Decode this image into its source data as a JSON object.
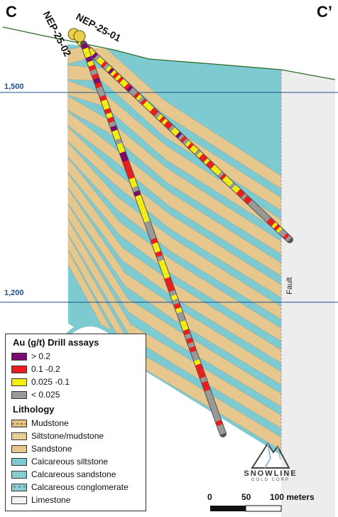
{
  "section": {
    "left_label": "C",
    "right_label": "C’",
    "elevations": [
      {
        "label": "1,500",
        "value": 1500
      },
      {
        "label": "1,200",
        "value": 1200
      }
    ],
    "fault_label": "Fault"
  },
  "drillholes": [
    {
      "id": "NEP-25-01",
      "label": "NEP-25-01"
    },
    {
      "id": "NEP-25-02",
      "label": "NEP-25-02"
    }
  ],
  "legend": {
    "assay_title": "Au (g/t) Drill assays",
    "assays": [
      {
        "label": "> 0.2",
        "color": "#7a0a6e"
      },
      {
        "label": "0.1 -0.2",
        "color": "#ee1c1c"
      },
      {
        "label": "0.025 -0.1",
        "color": "#f4ee12"
      },
      {
        "label": "< 0.025",
        "color": "#9a9a9a"
      }
    ],
    "lithology_title": "Lithology",
    "lithology": [
      {
        "label": "Mudstone",
        "color": "#e3c384",
        "pattern": "dash"
      },
      {
        "label": "Siltstone/mudstone",
        "color": "#ecd39c",
        "pattern": "dots"
      },
      {
        "label": "Sandstone",
        "color": "#e6c88e",
        "pattern": "none"
      },
      {
        "label": "Calcareous siltstone",
        "color": "#7dcbd0",
        "pattern": "none"
      },
      {
        "label": "Calcareous sandstone",
        "color": "#8fd2d6",
        "pattern": "dots"
      },
      {
        "label": "Calcareous conglomerate",
        "color": "#8fd2d6",
        "pattern": "circles"
      },
      {
        "label": "Limestone",
        "color": "#f2f2f2",
        "pattern": "none"
      }
    ]
  },
  "logo": {
    "name": "SNOWLINE",
    "sub": "GOLD CORP"
  },
  "scale": {
    "ticks": [
      "0",
      "50",
      "100 meters"
    ]
  },
  "colors": {
    "calc_siltstone": "#7dcbd0",
    "sandstone": "#e6c88e",
    "limestone": "#ededed",
    "topo": "#2f6b2a",
    "elev_line": "#1f4e8c"
  }
}
